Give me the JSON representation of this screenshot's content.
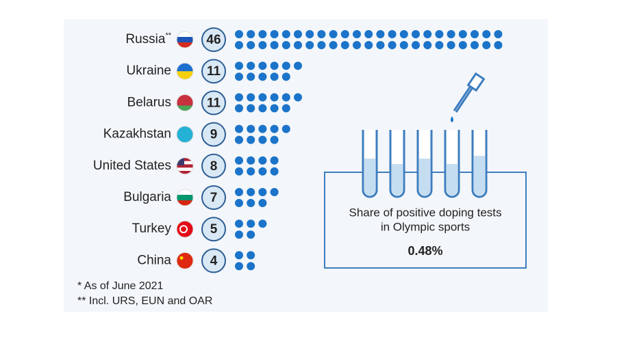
{
  "chart_data": {
    "type": "dots",
    "categories": [
      "Russia",
      "Ukraine",
      "Belarus",
      "Kazakhstan",
      "United States",
      "Bulgaria",
      "Turkey",
      "China"
    ],
    "category_markers": [
      "**",
      null,
      null,
      null,
      null,
      null,
      null,
      null
    ],
    "values": [
      46,
      11,
      11,
      9,
      8,
      7,
      5,
      4
    ],
    "color": "#1b74c9",
    "panel_text": [
      "Share of positive doping tests",
      "in Olympic sports"
    ],
    "panel_value": "0.48%",
    "footnotes": [
      "*   As of June 2021",
      "** Incl. URS, EUN and OAR"
    ]
  }
}
